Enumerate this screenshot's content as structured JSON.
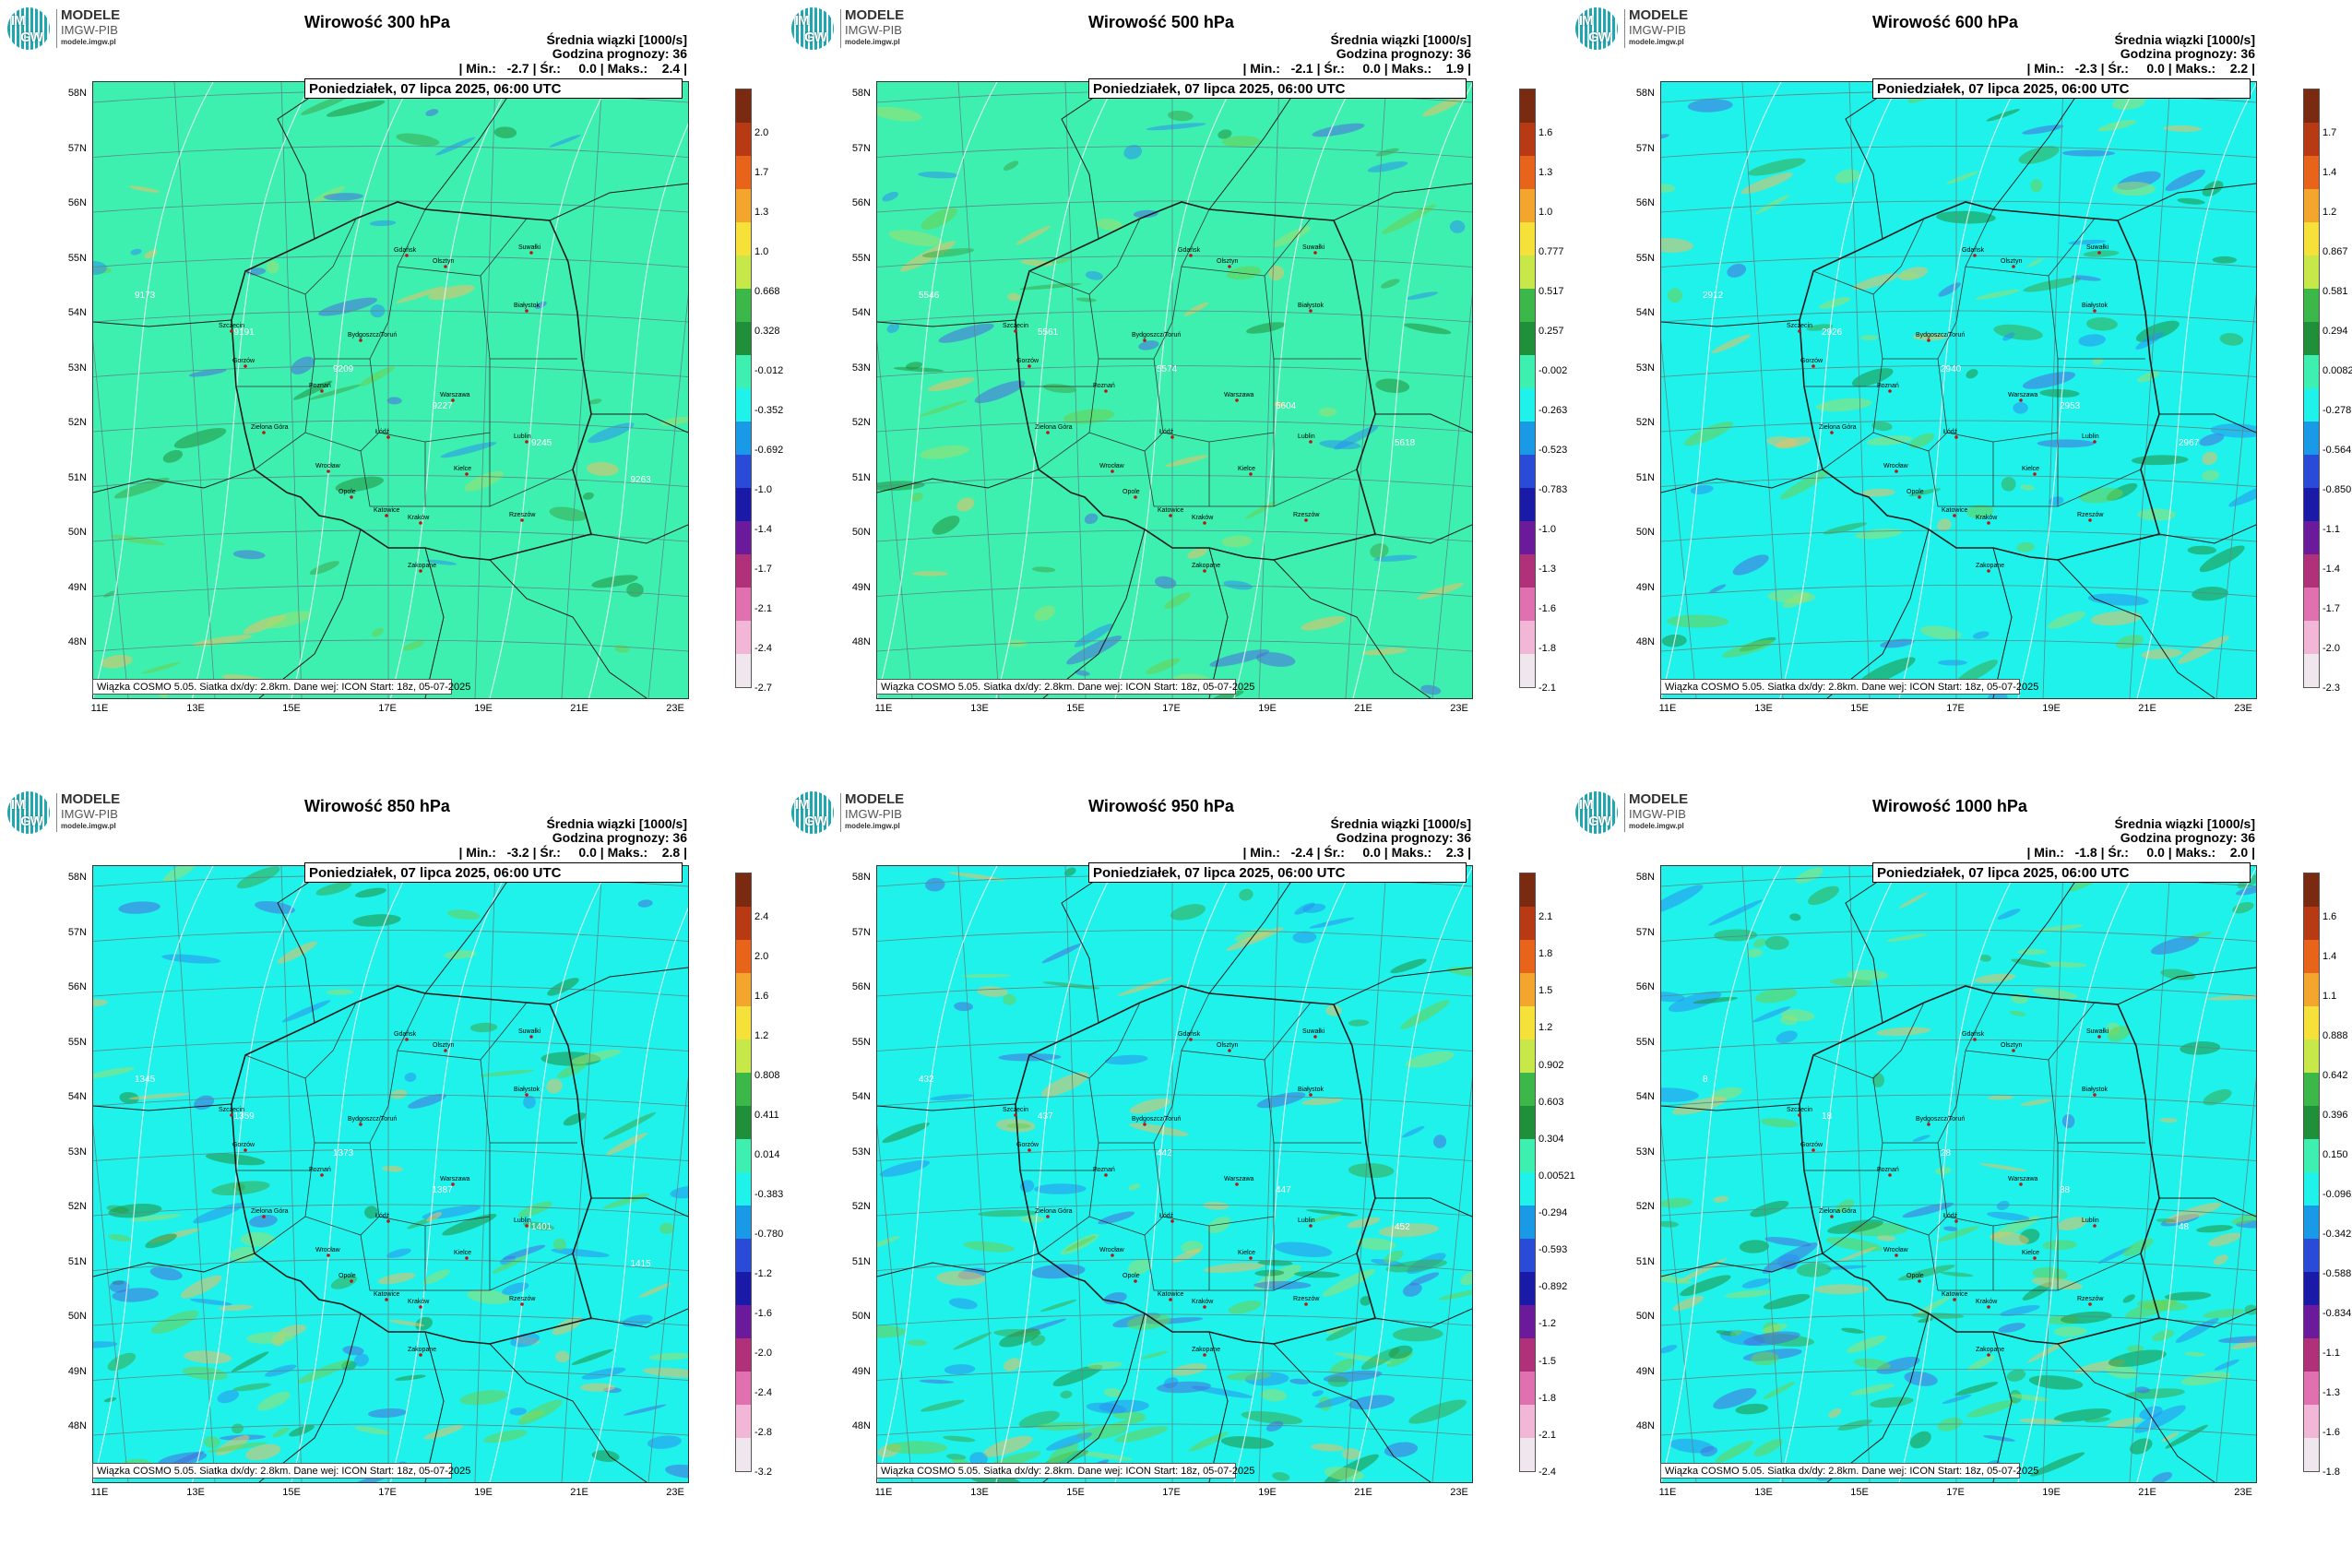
{
  "logo": {
    "line1": "MODELE",
    "line2": "IMGW-PIB",
    "line3": "modele.imgw.pl",
    "mark_top": "IM",
    "mark_bottom": "GW"
  },
  "common": {
    "subtitle1": "Średnia wiązki [1000/s]",
    "subtitle2": "Godzina prognozy: 36",
    "date": "Poniedziałek, 07 lipca 2025, 06:00 UTC",
    "credit": "Wiązka COSMO 5.05. Siatka dx/dy: 2.8km. Dane wej: ICON Start: 18z, 05-07-2025",
    "lat_labels": [
      "58N",
      "57N",
      "56N",
      "55N",
      "54N",
      "53N",
      "52N",
      "51N",
      "50N",
      "49N",
      "48N"
    ],
    "lon_labels": [
      "11E",
      "13E",
      "15E",
      "17E",
      "19E",
      "21E",
      "23E"
    ],
    "cities": [
      "Gdańsk",
      "Olsztyn",
      "Suwałki",
      "Szczecin",
      "Bydgoszcz/Toruń",
      "Białystok",
      "Gorzów",
      "Poznań",
      "Warszawa",
      "Zielona Góra",
      "Łódź",
      "Lublin",
      "Wrocław",
      "Kielce",
      "Opole",
      "Katowice",
      "Kraków",
      "Rzeszów",
      "Zakopane"
    ],
    "colors": {
      "map_bg_a": "#3df0b0",
      "map_bg_b": "#1ef2ea",
      "border": "#1a1a1a",
      "grid": "#5a8a88",
      "contour": "#e8f6f4"
    }
  },
  "panels": [
    {
      "title": "Wirowość 300 hPa",
      "min": "-2.7",
      "mean": "0.0",
      "max": "2.4",
      "ticks": [
        "2.0",
        "1.7",
        "1.3",
        "1.0",
        "0.668",
        "0.328",
        "-0.012",
        "-0.352",
        "-0.692",
        "-1.0",
        "-1.4",
        "-1.7",
        "-2.1",
        "-2.4",
        "-2.7"
      ],
      "contours": [
        "9173",
        "9191",
        "9209",
        "9227",
        "9245",
        "9263"
      ]
    },
    {
      "title": "Wirowość 500 hPa",
      "min": "-2.1",
      "mean": "0.0",
      "max": "1.9",
      "ticks": [
        "1.6",
        "1.3",
        "1.0",
        "0.777",
        "0.517",
        "0.257",
        "-0.002",
        "-0.263",
        "-0.523",
        "-0.783",
        "-1.0",
        "-1.3",
        "-1.6",
        "-1.8",
        "-2.1"
      ],
      "contours": [
        "5546",
        "5561",
        "5574",
        "5604",
        "5618"
      ]
    },
    {
      "title": "Wirowość 600 hPa",
      "min": "-2.3",
      "mean": "0.0",
      "max": "2.2",
      "ticks": [
        "1.7",
        "1.4",
        "1.2",
        "0.867",
        "0.581",
        "0.294",
        "0.00821",
        "-0.278",
        "-0.564",
        "-0.850",
        "-1.1",
        "-1.4",
        "-1.7",
        "-2.0",
        "-2.3"
      ],
      "contours": [
        "2912",
        "2926",
        "2940",
        "2953",
        "2967"
      ]
    },
    {
      "title": "Wirowość 850 hPa",
      "min": "-3.2",
      "mean": "0.0",
      "max": "2.8",
      "ticks": [
        "2.4",
        "2.0",
        "1.6",
        "1.2",
        "0.808",
        "0.411",
        "0.014",
        "-0.383",
        "-0.780",
        "-1.2",
        "-1.6",
        "-2.0",
        "-2.4",
        "-2.8",
        "-3.2"
      ],
      "contours": [
        "1345",
        "1359",
        "1373",
        "1387",
        "1401",
        "1415"
      ]
    },
    {
      "title": "Wirowość 950 hPa",
      "min": "-2.4",
      "mean": "0.0",
      "max": "2.3",
      "ticks": [
        "2.1",
        "1.8",
        "1.5",
        "1.2",
        "0.902",
        "0.603",
        "0.304",
        "0.00521",
        "-0.294",
        "-0.593",
        "-0.892",
        "-1.2",
        "-1.5",
        "-1.8",
        "-2.1",
        "-2.4"
      ],
      "contours": [
        "432",
        "437",
        "442",
        "447",
        "452"
      ]
    },
    {
      "title": "Wirowość 1000 hPa",
      "min": "-1.8",
      "mean": "0.0",
      "max": "2.0",
      "ticks": [
        "1.6",
        "1.4",
        "1.1",
        "0.888",
        "0.642",
        "0.396",
        "0.150",
        "-0.0962",
        "-0.342",
        "-0.588",
        "-0.834",
        "-1.1",
        "-1.3",
        "-1.6",
        "-1.8"
      ],
      "contours": [
        "8",
        "18",
        "28",
        "38",
        "48"
      ]
    }
  ]
}
